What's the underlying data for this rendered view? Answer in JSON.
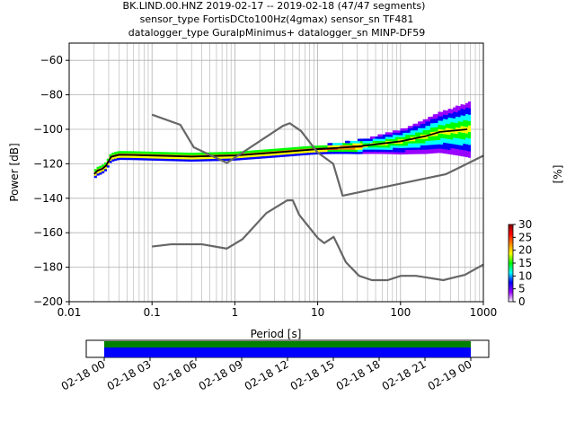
{
  "title_lines": [
    "BK.LIND.00.HNZ   2019-02-17 -- 2019-02-18  (47/47 segments)",
    "sensor_type FortisDCto100Hz(4gmax) sensor_sn TF481",
    "datalogger_type GuralpMinimus+ datalogger_sn MINP-DF59"
  ],
  "chart_data": {
    "type": "line",
    "xlabel": "Period [s]",
    "ylabel": "Power [dB]",
    "xscale": "log",
    "xlim": [
      0.01,
      1000
    ],
    "ylim": [
      -200,
      -50
    ],
    "x_ticks": [
      {
        "value": 0.01,
        "label": "0.01"
      },
      {
        "value": 0.1,
        "label": "0.1"
      },
      {
        "value": 1,
        "label": "1"
      },
      {
        "value": 10,
        "label": "10"
      },
      {
        "value": 100,
        "label": "100"
      },
      {
        "value": 1000,
        "label": "1000"
      }
    ],
    "y_ticks": [
      {
        "value": -200,
        "label": "−200"
      },
      {
        "value": -180,
        "label": "−180"
      },
      {
        "value": -160,
        "label": "−160"
      },
      {
        "value": -140,
        "label": "−140"
      },
      {
        "value": -120,
        "label": "−120"
      },
      {
        "value": -100,
        "label": "−100"
      },
      {
        "value": -80,
        "label": "−80"
      },
      {
        "value": -60,
        "label": "−60"
      }
    ],
    "grid": true,
    "series": [
      {
        "values": [
          [
            0.02,
            -126
          ],
          [
            0.022,
            -124
          ],
          [
            0.025,
            -123
          ],
          [
            0.028,
            -121
          ],
          [
            0.032,
            -116
          ],
          [
            0.04,
            -114.8
          ],
          [
            0.06,
            -114.9
          ],
          [
            0.1,
            -115.2
          ],
          [
            0.3,
            -115.8
          ],
          [
            1,
            -115.2
          ],
          [
            3,
            -113.5
          ],
          [
            10,
            -111.5
          ],
          [
            30,
            -110
          ],
          [
            100,
            -107
          ],
          [
            200,
            -104
          ],
          [
            300,
            -101.5
          ],
          [
            500,
            -100.5
          ],
          [
            640,
            -100
          ]
        ],
        "color": "#000000"
      },
      {
        "values": [
          [
            0.1,
            -91.5
          ],
          [
            0.22,
            -97.4
          ],
          [
            0.32,
            -110.5
          ],
          [
            0.8,
            -119.5
          ],
          [
            3.8,
            -98
          ],
          [
            4.6,
            -96.5
          ],
          [
            6.3,
            -101
          ],
          [
            10,
            -113.5
          ],
          [
            15.4,
            -120
          ],
          [
            20,
            -138.5
          ],
          [
            354.8,
            -126
          ],
          [
            10000,
            -91.5
          ]
        ],
        "color": "#666666"
      },
      {
        "values": [
          [
            0.1,
            -168
          ],
          [
            0.17,
            -166.7
          ],
          [
            0.4,
            -166.7
          ],
          [
            0.8,
            -169.2
          ],
          [
            1.24,
            -163.7
          ],
          [
            2.4,
            -148.6
          ],
          [
            4.3,
            -141.2
          ],
          [
            5,
            -141.2
          ],
          [
            6,
            -149.7
          ],
          [
            10,
            -163
          ],
          [
            12,
            -166
          ],
          [
            15.6,
            -162.4
          ],
          [
            21.9,
            -177.1
          ],
          [
            31.6,
            -185
          ],
          [
            45,
            -187.5
          ],
          [
            70,
            -187.5
          ],
          [
            101,
            -185
          ],
          [
            154,
            -185
          ],
          [
            328,
            -187.5
          ],
          [
            600,
            -184.4
          ],
          [
            10000,
            -151.5
          ]
        ],
        "color": "#666666"
      }
    ],
    "density": {
      "colorbar_label": "[%]",
      "colorbar_ticks": [
        0,
        5,
        10,
        15,
        20,
        25,
        30
      ],
      "colormap": [
        "#ffffff",
        "#9900ff",
        "#0000ff",
        "#00ffff",
        "#00ff00",
        "#ffff00",
        "#ff8800",
        "#ff0000",
        "#8b0000"
      ]
    },
    "time_axis": {
      "labels": [
        "02-18 00",
        "02-18 03",
        "02-18 06",
        "02-18 09",
        "02-18 12",
        "02-18 15",
        "02-18 18",
        "02-18 21",
        "02-19 00"
      ],
      "coverage_colors": [
        "#008000",
        "#0000ff"
      ]
    }
  }
}
